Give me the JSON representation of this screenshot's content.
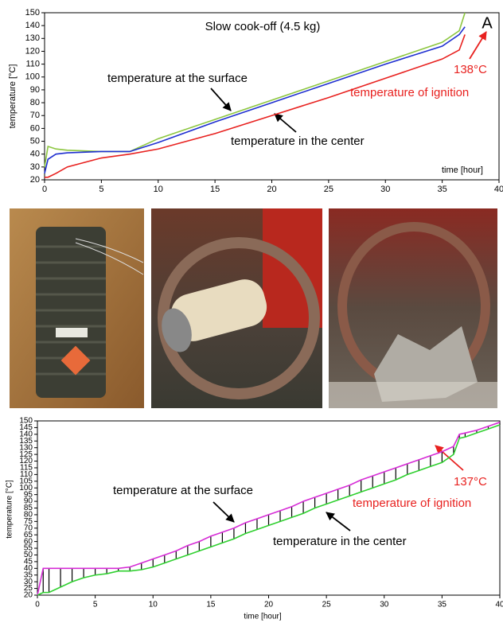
{
  "chart_data": [
    {
      "type": "line",
      "title": "Slow cook-off (4.5 kg)",
      "panel_label": "A",
      "x_label": "time [hour]",
      "y_label": "temperature [°C]",
      "x": [
        0,
        0.3,
        1,
        2,
        5,
        7.5,
        10,
        15,
        20,
        25,
        30,
        35,
        36.5,
        37
      ],
      "series": [
        {
          "color": "#8cc63f",
          "values": [
            30,
            46,
            44,
            43,
            42,
            42,
            52,
            67,
            82,
            97,
            112,
            127,
            136,
            150
          ]
        },
        {
          "color": "#1f2fd0",
          "values": [
            25,
            36,
            40,
            41,
            42,
            42,
            49,
            65,
            80,
            95,
            110,
            124,
            133,
            139
          ]
        },
        {
          "color": "#e8211f",
          "values": [
            22,
            22,
            25,
            30,
            37,
            40,
            44,
            56,
            70,
            84,
            99,
            114,
            121,
            133
          ]
        }
      ],
      "xlim": [
        0,
        40
      ],
      "xticks": [
        0,
        5,
        10,
        15,
        20,
        25,
        30,
        35,
        40
      ],
      "ylim": [
        20,
        150
      ],
      "yticks": [
        20,
        30,
        40,
        50,
        60,
        70,
        80,
        90,
        100,
        110,
        120,
        130,
        140,
        150
      ],
      "annotations": [
        {
          "text": "temperature at the surface",
          "color": "#000000"
        },
        {
          "text": "temperature in the center",
          "color": "#000000"
        },
        {
          "text": "138°C",
          "color": "#e8211f"
        },
        {
          "text": "temperature of ignition",
          "color": "#e8211f"
        }
      ]
    },
    {
      "type": "line",
      "x_label": "time [hour]",
      "y_label": "temperature [°C]",
      "hatch": true,
      "x": [
        0,
        0.5,
        1,
        2,
        3,
        4,
        5,
        6,
        7,
        8,
        9,
        10,
        11,
        12,
        13,
        14,
        15,
        16,
        17,
        18,
        19,
        20,
        21,
        22,
        23,
        24,
        25,
        26,
        27,
        28,
        29,
        30,
        31,
        32,
        33,
        34,
        35,
        36,
        36.5,
        37,
        38,
        39,
        40
      ],
      "series": [
        {
          "color": "#d62cd6",
          "values": [
            20,
            40,
            40,
            40,
            40,
            40,
            40,
            40,
            40,
            41,
            44,
            47,
            50,
            53,
            57,
            60,
            64,
            67,
            70,
            74,
            77,
            80,
            83,
            86,
            90,
            93,
            96,
            99,
            102,
            106,
            109,
            112,
            115,
            118,
            121,
            124,
            127,
            131,
            140,
            141,
            143,
            146,
            149
          ]
        },
        {
          "color": "#2fd02f",
          "values": [
            20,
            22,
            22,
            26,
            30,
            33,
            35,
            36,
            38,
            38,
            39,
            41,
            44,
            47,
            50,
            53,
            56,
            59,
            62,
            66,
            69,
            72,
            75,
            78,
            81,
            85,
            88,
            91,
            94,
            97,
            100,
            103,
            106,
            110,
            113,
            116,
            119,
            125,
            137,
            138,
            141,
            144,
            147
          ]
        }
      ],
      "xlim": [
        0,
        40
      ],
      "xticks": [
        0,
        5,
        10,
        15,
        20,
        25,
        30,
        35,
        40
      ],
      "ylim": [
        20,
        150
      ],
      "yticks": [
        20,
        25,
        30,
        35,
        40,
        45,
        50,
        55,
        60,
        65,
        70,
        75,
        80,
        85,
        90,
        95,
        100,
        105,
        110,
        115,
        120,
        125,
        130,
        135,
        140,
        145,
        150
      ],
      "annotations": [
        {
          "text": "temperature at the surface",
          "color": "#000000"
        },
        {
          "text": "temperature in the center",
          "color": "#000000"
        },
        {
          "text": "137°C",
          "color": "#e8211f"
        },
        {
          "text": "temperature of ignition",
          "color": "#e8211f"
        }
      ]
    }
  ]
}
